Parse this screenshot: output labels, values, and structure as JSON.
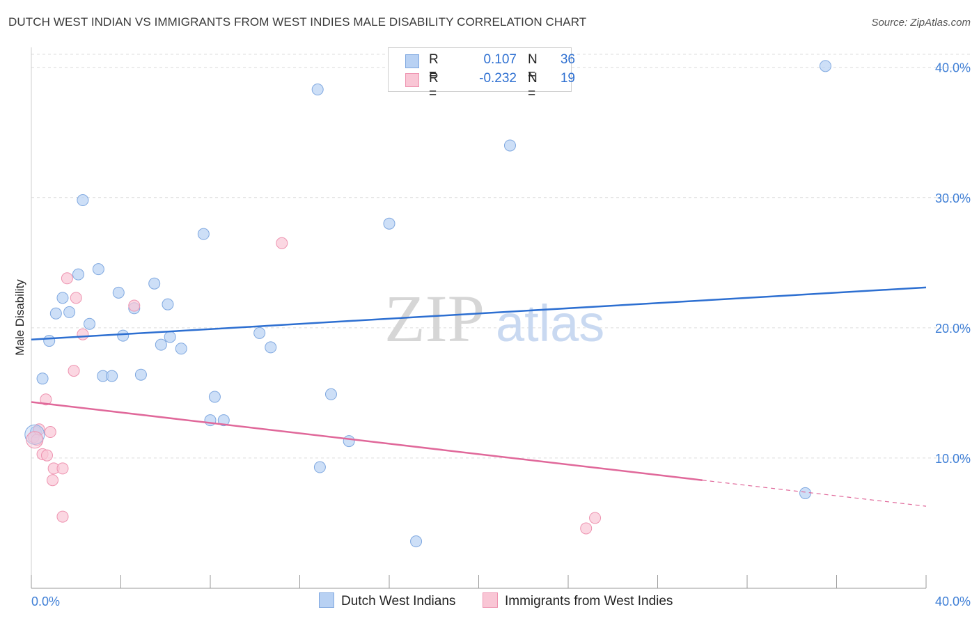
{
  "header": {
    "title": "DUTCH WEST INDIAN VS IMMIGRANTS FROM WEST INDIES MALE DISABILITY CORRELATION CHART",
    "source": "Source: ZipAtlas.com"
  },
  "watermark": {
    "zip": "ZIP",
    "atlas": "atlas"
  },
  "legend": {
    "rows": [
      {
        "r_label": "R =",
        "r_value": "0.107",
        "n_label": "N =",
        "n_value": "36",
        "color": "#b8d1f3",
        "stroke": "#7fa8e0"
      },
      {
        "r_label": "R =",
        "r_value": "-0.232",
        "n_label": "N =",
        "n_value": "19",
        "color": "#f9c6d5",
        "stroke": "#ee93b0"
      }
    ]
  },
  "bottom_legend": [
    {
      "label": "Dutch West Indians",
      "color": "#b8d1f3",
      "stroke": "#7fa8e0"
    },
    {
      "label": "Immigrants from West Indies",
      "color": "#f9c6d5",
      "stroke": "#ee93b0"
    }
  ],
  "colors": {
    "series1_fill": "#b8d1f3",
    "series1_stroke": "#7fa8e0",
    "series1_line": "#2d6fd1",
    "series2_fill": "#f9c6d5",
    "series2_stroke": "#ee93b0",
    "series2_line": "#e0689a",
    "grid": "#dcdcdc",
    "tick_text": "#3f7fd6"
  },
  "chart_data": {
    "type": "scatter",
    "title": "DUTCH WEST INDIAN VS IMMIGRANTS FROM WEST INDIES MALE DISABILITY CORRELATION CHART",
    "xlabel": "",
    "ylabel": "Male Disability",
    "xlim": [
      0,
      40
    ],
    "ylim": [
      0,
      41
    ],
    "x_tick_labels": [
      "0.0%",
      "40.0%"
    ],
    "y_ticks": [
      10,
      20,
      30,
      40
    ],
    "y_tick_labels": [
      "10.0%",
      "20.0%",
      "30.0%",
      "40.0%"
    ],
    "grid": true,
    "legend_position": "top-center",
    "series": [
      {
        "name": "Dutch West Indians",
        "R": 0.107,
        "N": 36,
        "points": [
          [
            0.2,
            12.0
          ],
          [
            0.5,
            16.1
          ],
          [
            0.8,
            19.0
          ],
          [
            1.1,
            21.1
          ],
          [
            1.4,
            22.3
          ],
          [
            1.7,
            21.2
          ],
          [
            2.1,
            24.1
          ],
          [
            2.3,
            29.8
          ],
          [
            2.6,
            20.3
          ],
          [
            3.0,
            24.5
          ],
          [
            3.2,
            16.3
          ],
          [
            3.6,
            16.3
          ],
          [
            3.9,
            22.7
          ],
          [
            4.1,
            19.4
          ],
          [
            4.6,
            21.5
          ],
          [
            4.9,
            16.4
          ],
          [
            5.5,
            23.4
          ],
          [
            5.8,
            18.7
          ],
          [
            6.1,
            21.8
          ],
          [
            6.2,
            19.3
          ],
          [
            6.7,
            18.4
          ],
          [
            7.7,
            27.2
          ],
          [
            8.2,
            14.7
          ],
          [
            8.0,
            12.9
          ],
          [
            8.6,
            12.9
          ],
          [
            10.2,
            19.6
          ],
          [
            10.7,
            18.5
          ],
          [
            12.8,
            38.3
          ],
          [
            12.9,
            9.3
          ],
          [
            13.4,
            14.9
          ],
          [
            14.2,
            11.3
          ],
          [
            16.0,
            28.0
          ],
          [
            17.2,
            3.6
          ],
          [
            21.4,
            34.0
          ],
          [
            34.6,
            7.3
          ],
          [
            35.5,
            40.1
          ]
        ],
        "trend": {
          "x": [
            0,
            40
          ],
          "y": [
            19.1,
            23.1
          ]
        }
      },
      {
        "name": "Immigrants from West Indies",
        "R": -0.232,
        "N": 19,
        "points": [
          [
            0.1,
            11.6
          ],
          [
            0.25,
            11.4
          ],
          [
            0.35,
            12.2
          ],
          [
            0.5,
            10.3
          ],
          [
            0.65,
            14.5
          ],
          [
            0.7,
            10.2
          ],
          [
            0.85,
            12.0
          ],
          [
            0.95,
            8.3
          ],
          [
            1.0,
            9.2
          ],
          [
            1.4,
            9.2
          ],
          [
            1.4,
            5.5
          ],
          [
            1.6,
            23.8
          ],
          [
            1.9,
            16.7
          ],
          [
            2.0,
            22.3
          ],
          [
            2.3,
            19.5
          ],
          [
            4.6,
            21.7
          ],
          [
            11.2,
            26.5
          ],
          [
            24.8,
            4.6
          ],
          [
            25.2,
            5.4
          ]
        ],
        "trend": {
          "x": [
            0,
            30
          ],
          "y": [
            14.3,
            8.3
          ]
        },
        "trend_dashed": {
          "x": [
            30,
            40
          ],
          "y": [
            8.3,
            6.3
          ]
        }
      }
    ]
  }
}
